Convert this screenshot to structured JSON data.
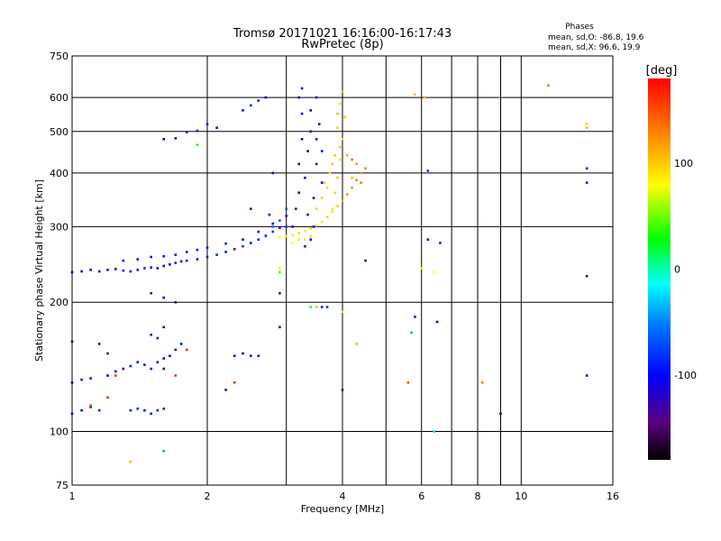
{
  "chart_data": {
    "type": "scatter",
    "title": "Tromsø 20171021 16:16:00-16:17:43",
    "subtitle": "RwPretec (8p)",
    "xlabel": "Frequency [MHz]",
    "ylabel": "Stationary phase Virtual Height [km]",
    "x_scale": "log",
    "y_scale": "log",
    "xlim": [
      1,
      16
    ],
    "ylim": [
      75,
      750
    ],
    "x_ticks": [
      1,
      2,
      4,
      6,
      8,
      10,
      16
    ],
    "x_tick_labels": [
      "1",
      "2",
      "4",
      "6",
      "8",
      "10",
      "16"
    ],
    "x_grid": [
      1,
      2,
      3,
      4,
      5,
      6,
      7,
      8,
      9,
      10,
      16
    ],
    "y_ticks": [
      75,
      100,
      200,
      300,
      400,
      500,
      600,
      750
    ],
    "y_tick_labels": [
      "75",
      "100",
      "200",
      "300",
      "400",
      "500",
      "600",
      "750"
    ],
    "y_grid": [
      100,
      200,
      300,
      400,
      500,
      600
    ],
    "grid": true,
    "legend": {
      "title": "Phases",
      "lines": [
        "mean, sd,O: -86.8, 19.6",
        "mean, sd,X: 96.6, 19.9"
      ],
      "position": "top-right"
    },
    "colorbar": {
      "label": "[deg]",
      "min": -180,
      "max": 180,
      "ticks": [
        100,
        0,
        -100
      ],
      "tick_labels": [
        "100",
        "0",
        "-100"
      ],
      "colormap": "rainbow"
    },
    "series": [
      {
        "name": "O",
        "points": [
          [
            1.0,
            235,
            -100
          ],
          [
            1.05,
            236,
            -105
          ],
          [
            1.1,
            238,
            -95
          ],
          [
            1.15,
            236,
            -100
          ],
          [
            1.2,
            238,
            -110
          ],
          [
            1.25,
            239,
            -100
          ],
          [
            1.3,
            237,
            -95
          ],
          [
            1.35,
            236,
            -105
          ],
          [
            1.4,
            238,
            -100
          ],
          [
            1.45,
            240,
            -90
          ],
          [
            1.5,
            241,
            -100
          ],
          [
            1.55,
            240,
            -105
          ],
          [
            1.6,
            243,
            -95
          ],
          [
            1.65,
            245,
            -100
          ],
          [
            1.7,
            247,
            -90
          ],
          [
            1.75,
            249,
            -100
          ],
          [
            1.8,
            250,
            -95
          ],
          [
            1.9,
            252,
            -95
          ],
          [
            2.0,
            255,
            -90
          ],
          [
            2.1,
            258,
            -85
          ],
          [
            2.2,
            262,
            -95
          ],
          [
            2.3,
            266,
            -90
          ],
          [
            2.4,
            270,
            -80
          ],
          [
            2.5,
            275,
            -95
          ],
          [
            2.6,
            280,
            -85
          ],
          [
            2.7,
            286,
            -75
          ],
          [
            2.8,
            292,
            -80
          ],
          [
            2.9,
            298,
            -85
          ],
          [
            3.0,
            300,
            -75
          ],
          [
            1.3,
            250,
            -100
          ],
          [
            1.4,
            252,
            -95
          ],
          [
            1.5,
            255,
            -105
          ],
          [
            1.6,
            256,
            -100
          ],
          [
            1.7,
            258,
            -90
          ],
          [
            1.8,
            262,
            -95
          ],
          [
            1.9,
            265,
            -100
          ],
          [
            2.0,
            268,
            -90
          ],
          [
            2.2,
            274,
            -85
          ],
          [
            2.4,
            280,
            -95
          ],
          [
            2.6,
            292,
            -110
          ],
          [
            2.8,
            305,
            -110
          ],
          [
            3.0,
            318,
            -115
          ],
          [
            3.1,
            300,
            -110
          ],
          [
            3.15,
            330,
            -120
          ],
          [
            3.2,
            360,
            -115
          ],
          [
            3.2,
            420,
            -125
          ],
          [
            3.25,
            480,
            -110
          ],
          [
            3.25,
            550,
            -115
          ],
          [
            3.2,
            600,
            -120
          ],
          [
            3.25,
            630,
            -130
          ],
          [
            3.3,
            390,
            -110
          ],
          [
            3.35,
            450,
            -105
          ],
          [
            3.4,
            500,
            -120
          ],
          [
            3.4,
            560,
            -115
          ],
          [
            3.45,
            350,
            -110
          ],
          [
            3.5,
            420,
            -120
          ],
          [
            3.5,
            480,
            -110
          ],
          [
            3.55,
            520,
            -115
          ],
          [
            3.5,
            600,
            -125
          ],
          [
            3.6,
            380,
            -105
          ],
          [
            3.6,
            450,
            -110
          ],
          [
            3.35,
            320,
            -120
          ],
          [
            3.45,
            300,
            -115
          ],
          [
            3.3,
            270,
            -110
          ],
          [
            3.4,
            280,
            -100
          ],
          [
            1.8,
            498,
            -100
          ],
          [
            1.9,
            502,
            -95
          ],
          [
            2.0,
            520,
            -90
          ],
          [
            2.1,
            510,
            -95
          ],
          [
            1.7,
            482,
            -100
          ],
          [
            1.6,
            480,
            -105
          ],
          [
            2.4,
            560,
            -95
          ],
          [
            2.5,
            575,
            -90
          ],
          [
            2.6,
            590,
            -95
          ],
          [
            2.7,
            600,
            -100
          ],
          [
            2.7,
            285,
            -70
          ],
          [
            2.8,
            300,
            -60
          ],
          [
            2.9,
            310,
            -65
          ],
          [
            3.0,
            330,
            -70
          ],
          [
            1.0,
            130,
            -100
          ],
          [
            1.05,
            132,
            -95
          ],
          [
            1.1,
            133,
            -105
          ],
          [
            1.2,
            135,
            -100
          ],
          [
            1.25,
            138,
            -95
          ],
          [
            1.3,
            140,
            -105
          ],
          [
            1.35,
            142,
            -90
          ],
          [
            1.4,
            145,
            -100
          ],
          [
            1.45,
            143,
            -95
          ],
          [
            1.5,
            140,
            -105
          ],
          [
            1.55,
            145,
            -100
          ],
          [
            1.6,
            148,
            -110
          ],
          [
            1.65,
            150,
            -100
          ],
          [
            1.7,
            155,
            -95
          ],
          [
            1.75,
            160,
            -100
          ],
          [
            1.0,
            110,
            -90
          ],
          [
            1.05,
            112,
            -100
          ],
          [
            1.1,
            114,
            -95
          ],
          [
            1.15,
            112,
            -90
          ],
          [
            1.35,
            112,
            -100
          ],
          [
            1.4,
            113,
            -95
          ],
          [
            1.45,
            112,
            -100
          ],
          [
            1.5,
            110,
            -95
          ],
          [
            1.55,
            112,
            -100
          ],
          [
            1.6,
            113,
            -90
          ],
          [
            1.5,
            210,
            -130
          ],
          [
            1.6,
            205,
            -125
          ],
          [
            1.7,
            200,
            -120
          ],
          [
            1.55,
            165,
            -130
          ],
          [
            1.5,
            168,
            -125
          ],
          [
            1.2,
            152,
            -130
          ],
          [
            1.15,
            160,
            -120
          ],
          [
            1.0,
            162,
            -125
          ],
          [
            1.6,
            175,
            -100
          ],
          [
            2.6,
            150,
            -105
          ],
          [
            2.5,
            150,
            -110
          ],
          [
            2.4,
            152,
            -100
          ],
          [
            2.3,
            150,
            -105
          ],
          [
            2.9,
            175,
            -110
          ],
          [
            2.9,
            210,
            -120
          ],
          [
            2.75,
            320,
            -105
          ],
          [
            2.8,
            400,
            -100
          ],
          [
            2.5,
            330,
            -110
          ],
          [
            3.6,
            195,
            -90
          ],
          [
            3.7,
            195,
            -85
          ],
          [
            4.5,
            250,
            -110
          ],
          [
            5.8,
            185,
            -90
          ],
          [
            6.5,
            180,
            -115
          ],
          [
            6.6,
            275,
            -90
          ],
          [
            6.2,
            405,
            -80
          ],
          [
            6.2,
            280,
            -95
          ],
          [
            9.0,
            110,
            -110
          ],
          [
            14.0,
            410,
            -130
          ],
          [
            14.0,
            380,
            -125
          ],
          [
            14.0,
            230,
            -125
          ],
          [
            14.0,
            135,
            -110
          ],
          [
            4.0,
            125,
            -130
          ],
          [
            2.2,
            125,
            -130
          ]
        ]
      },
      {
        "name": "X",
        "points": [
          [
            2.9,
            283,
            80
          ],
          [
            3.0,
            285,
            85
          ],
          [
            3.1,
            287,
            90
          ],
          [
            3.2,
            290,
            95
          ],
          [
            3.3,
            293,
            90
          ],
          [
            3.4,
            297,
            100
          ],
          [
            3.5,
            302,
            95
          ],
          [
            3.6,
            308,
            90
          ],
          [
            3.7,
            316,
            100
          ],
          [
            3.8,
            325,
            95
          ],
          [
            3.9,
            335,
            100
          ],
          [
            4.0,
            345,
            110
          ],
          [
            4.1,
            357,
            120
          ],
          [
            4.2,
            370,
            125
          ],
          [
            4.3,
            385,
            130
          ],
          [
            4.4,
            400,
            125
          ],
          [
            4.5,
            410,
            130
          ],
          [
            3.8,
            330,
            90
          ],
          [
            3.85,
            360,
            95
          ],
          [
            3.9,
            390,
            100
          ],
          [
            3.95,
            430,
            90
          ],
          [
            4.0,
            480,
            95
          ],
          [
            4.05,
            540,
            100
          ],
          [
            3.95,
            580,
            90
          ],
          [
            4.0,
            620,
            110
          ],
          [
            3.9,
            510,
            95
          ],
          [
            3.95,
            460,
            100
          ],
          [
            3.85,
            440,
            95
          ],
          [
            3.9,
            550,
            105
          ],
          [
            3.5,
            330,
            95
          ],
          [
            3.6,
            350,
            100
          ],
          [
            3.7,
            370,
            95
          ],
          [
            3.75,
            400,
            90
          ],
          [
            3.8,
            420,
            100
          ],
          [
            3.65,
            380,
            95
          ],
          [
            4.2,
            390,
            110
          ],
          [
            4.3,
            420,
            120
          ],
          [
            4.1,
            440,
            110
          ],
          [
            4.4,
            380,
            130
          ],
          [
            4.2,
            430,
            140
          ],
          [
            2.9,
            240,
            70
          ],
          [
            3.1,
            275,
            80
          ],
          [
            3.2,
            280,
            85
          ],
          [
            3.3,
            280,
            90
          ],
          [
            3.4,
            285,
            95
          ],
          [
            6.0,
            240,
            90
          ],
          [
            6.4,
            235,
            80
          ],
          [
            5.8,
            610,
            100
          ],
          [
            6.1,
            600,
            110
          ],
          [
            11.5,
            640,
            140
          ],
          [
            14.0,
            520,
            100
          ],
          [
            14.0,
            510,
            110
          ],
          [
            8.2,
            130,
            130
          ],
          [
            4.0,
            190,
            90
          ],
          [
            4.3,
            160,
            110
          ],
          [
            3.5,
            195,
            100
          ],
          [
            1.35,
            85,
            110
          ]
        ]
      },
      {
        "name": "other",
        "points": [
          [
            1.6,
            90,
            -40
          ],
          [
            3.4,
            195,
            20
          ],
          [
            5.7,
            170,
            -40
          ],
          [
            5.6,
            130,
            150
          ],
          [
            6.4,
            100,
            -20
          ],
          [
            1.2,
            120,
            170
          ],
          [
            1.1,
            115,
            150
          ],
          [
            1.25,
            135,
            160
          ],
          [
            1.6,
            140,
            -150
          ],
          [
            1.7,
            135,
            160
          ],
          [
            1.8,
            155,
            170
          ],
          [
            1.9,
            465,
            20
          ],
          [
            2.9,
            235,
            40
          ],
          [
            2.3,
            130,
            160
          ]
        ]
      }
    ]
  }
}
